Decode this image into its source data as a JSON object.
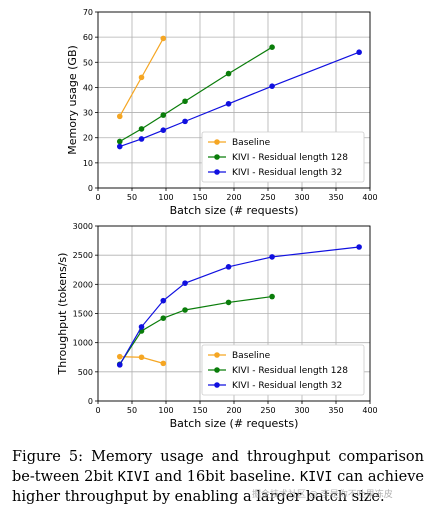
{
  "chart_data": [
    {
      "type": "line",
      "ylabel": "Memory usage (GB)",
      "xlabel": "Batch size (# requests)",
      "xlim": [
        0,
        400
      ],
      "ylim": [
        0,
        70
      ],
      "xticks": [
        0,
        50,
        100,
        150,
        200,
        250,
        300,
        350,
        400
      ],
      "yticks": [
        0,
        10,
        20,
        30,
        40,
        50,
        60,
        70
      ],
      "grid": true,
      "legend_position": "bottom-right",
      "series": [
        {
          "name": "Baseline",
          "color": "#f5a623",
          "x": [
            32,
            64,
            96
          ],
          "y": [
            28.5,
            44,
            59.5
          ]
        },
        {
          "name": "KIVI - Residual length 128",
          "color": "#0a7d0a",
          "x": [
            32,
            64,
            96,
            128,
            192,
            256
          ],
          "y": [
            18.5,
            23.5,
            29,
            34.5,
            45.5,
            56
          ]
        },
        {
          "name": "KIVI - Residual length 32",
          "color": "#1010e0",
          "x": [
            32,
            64,
            96,
            128,
            192,
            256,
            384
          ],
          "y": [
            16.5,
            19.5,
            23,
            26.5,
            33.5,
            40.5,
            54
          ]
        }
      ]
    },
    {
      "type": "line",
      "ylabel": "Throughput (tokens/s)",
      "xlabel": "Batch size (# requests)",
      "xlim": [
        0,
        400
      ],
      "ylim": [
        0,
        3000
      ],
      "xticks": [
        0,
        50,
        100,
        150,
        200,
        250,
        300,
        350,
        400
      ],
      "yticks": [
        0,
        500,
        1000,
        1500,
        2000,
        2500,
        3000
      ],
      "grid": true,
      "legend_position": "bottom-right",
      "series": [
        {
          "name": "Baseline",
          "color": "#f5a623",
          "x": [
            32,
            64,
            96
          ],
          "y": [
            760,
            750,
            645
          ]
        },
        {
          "name": "KIVI - Residual length 128",
          "color": "#0a7d0a",
          "x": [
            32,
            64,
            96,
            128,
            192,
            256
          ],
          "y": [
            630,
            1200,
            1420,
            1560,
            1690,
            1790
          ]
        },
        {
          "name": "KIVI - Residual length 32",
          "color": "#1010e0",
          "x": [
            32,
            64,
            96,
            128,
            192,
            256,
            384
          ],
          "y": [
            620,
            1270,
            1720,
            2020,
            2300,
            2470,
            2640
          ]
        }
      ]
    }
  ],
  "caption": {
    "label": "Figure 5:",
    "part1": " Memory usage and throughput comparison be-tween 2bit ",
    "kivi": "KIVI",
    "part2": " and 16bit baseline. ",
    "kivi2": "KIVI",
    "part3": " can achieve higher throughput by enabling a larger batch size."
  },
  "watermark": "掘金技术社区 @ 李是你不吐果冻皮"
}
